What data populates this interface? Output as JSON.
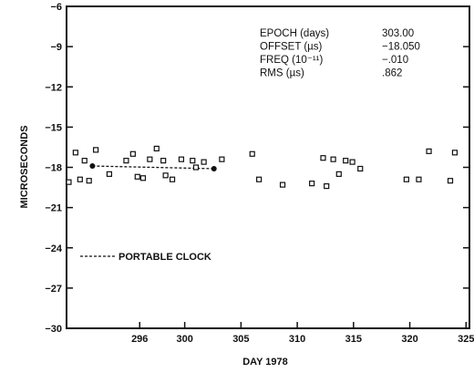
{
  "chart_data": {
    "type": "scatter",
    "title": "",
    "xlabel": "DAY 1978",
    "ylabel": "MICROSECONDS",
    "xlim": [
      289.5,
      325.3
    ],
    "ylim": [
      -30,
      -6
    ],
    "x_ticks": [
      296,
      300,
      305,
      310,
      315,
      320,
      325
    ],
    "y_ticks": [
      -6,
      -9,
      -12,
      -15,
      -18,
      -21,
      -24,
      -27,
      -30
    ],
    "stats": [
      {
        "label": "EPOCH (days)",
        "value": "303.00"
      },
      {
        "label": "OFFSET (µs)",
        "value": "-18.050"
      },
      {
        "label": "FREQ (10⁻¹¹)",
        "value": "-.010"
      },
      {
        "label": "RMS (µs)",
        "value": ".862"
      }
    ],
    "series": [
      {
        "marker": "open-square",
        "points": [
          [
            289.7,
            -19.1
          ],
          [
            290.3,
            -16.9
          ],
          [
            290.7,
            -18.9
          ],
          [
            291.1,
            -17.5
          ],
          [
            291.5,
            -19.0
          ],
          [
            292.1,
            -16.7
          ],
          [
            293.3,
            -18.5
          ],
          [
            294.8,
            -17.5
          ],
          [
            295.4,
            -17.0
          ],
          [
            295.8,
            -18.7
          ],
          [
            296.3,
            -18.8
          ],
          [
            296.9,
            -17.4
          ],
          [
            297.5,
            -16.6
          ],
          [
            298.1,
            -17.5
          ],
          [
            298.3,
            -18.6
          ],
          [
            298.9,
            -18.9
          ],
          [
            299.7,
            -17.4
          ],
          [
            300.7,
            -17.5
          ],
          [
            301.0,
            -18.0
          ],
          [
            301.7,
            -17.6
          ],
          [
            303.3,
            -17.4
          ],
          [
            306.0,
            -17.0
          ],
          [
            306.6,
            -18.9
          ],
          [
            308.7,
            -19.3
          ],
          [
            311.3,
            -19.2
          ],
          [
            312.3,
            -17.3
          ],
          [
            312.6,
            -19.4
          ],
          [
            313.2,
            -17.4
          ],
          [
            313.7,
            -18.5
          ],
          [
            314.3,
            -17.5
          ],
          [
            314.9,
            -17.6
          ],
          [
            315.6,
            -18.1
          ],
          [
            319.7,
            -18.9
          ],
          [
            320.8,
            -18.9
          ],
          [
            321.7,
            -16.8
          ],
          [
            323.6,
            -19.0
          ],
          [
            324.0,
            -16.9
          ]
        ]
      },
      {
        "marker": "filled-dot",
        "points": [
          [
            291.8,
            -17.9
          ],
          [
            302.6,
            -18.1
          ]
        ]
      }
    ],
    "portable_clock_line": {
      "x": [
        291.8,
        302.6
      ],
      "y": [
        -17.9,
        -18.1
      ]
    },
    "legend": [
      {
        "label": "PORTABLE CLOCK",
        "style": "dashed-line"
      }
    ]
  }
}
